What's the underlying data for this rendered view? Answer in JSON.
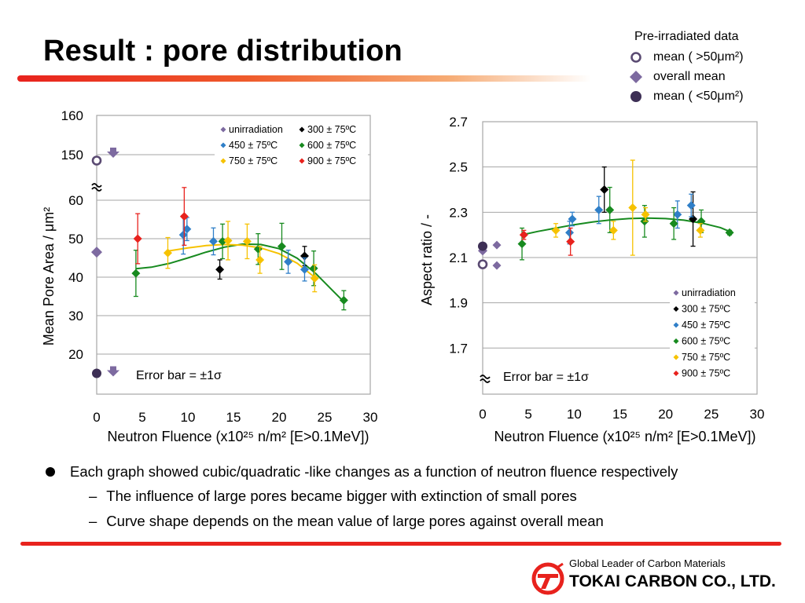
{
  "slide": {
    "title": "Result : pore distribution",
    "legend_top": {
      "heading": "Pre-irradiated data",
      "items": [
        {
          "label": "mean ( >50μm²)",
          "symbol": "open-circle",
          "color": "#5a4a72"
        },
        {
          "label": "overall mean",
          "symbol": "diamond",
          "color": "#7d6aa0"
        },
        {
          "label": "mean ( <50μm²)",
          "symbol": "filled-circle",
          "color": "#3d2f55"
        }
      ]
    },
    "bullets": [
      {
        "level": 1,
        "text": "Each graph showed cubic/quadratic -like changes as a function of neutron fluence respectively"
      },
      {
        "level": 2,
        "text": "The influence of large pores became bigger with extinction of small pores"
      },
      {
        "level": 2,
        "text": "Curve shape depends on the mean value of large pores against overall mean"
      }
    ],
    "footer": {
      "tagline": "Global Leader of Carbon Materials",
      "company": "TOKAI CARBON CO., LTD.",
      "brand_color": "#e8221d"
    }
  },
  "chart_data": [
    {
      "type": "scatter",
      "xlabel": "Neutron Fluence (x10²⁵ n/m² [E>0.1MeV])",
      "ylabel": "Mean Pore Area / μm²",
      "xlim": [
        0,
        30
      ],
      "x_ticks": [
        0,
        5,
        10,
        15,
        20,
        25,
        30
      ],
      "y_ticks_lower": [
        20,
        30,
        40,
        50,
        60
      ],
      "y_ticks_upper": [
        150,
        160
      ],
      "axis_break": true,
      "annotation": "Error bar = ±1σ",
      "grid": true,
      "legend_position": "top-right",
      "series": [
        {
          "name": "unirradiation",
          "color": "#7d6aa0",
          "points": [
            {
              "x": 0,
              "y": 46.5,
              "err": 0
            }
          ]
        },
        {
          "name": "300 ± 75ºC",
          "color": "#000000",
          "points": [
            {
              "x": 13.5,
              "y": 42,
              "err": 2.5
            },
            {
              "x": 22.8,
              "y": 45.5,
              "err": 2.5
            }
          ]
        },
        {
          "name": "450 ± 75ºC",
          "color": "#2f7fc8",
          "points": [
            {
              "x": 9.5,
              "y": 51,
              "err": 5
            },
            {
              "x": 9.9,
              "y": 52.5,
              "err": 3
            },
            {
              "x": 12.8,
              "y": 49.3,
              "err": 3.5
            },
            {
              "x": 21,
              "y": 44,
              "err": 3
            },
            {
              "x": 22.8,
              "y": 42,
              "err": 3
            }
          ]
        },
        {
          "name": "600 ± 75ºC",
          "color": "#178a1f",
          "points": [
            {
              "x": 4.3,
              "y": 41,
              "err": 6
            },
            {
              "x": 13.8,
              "y": 49.3,
              "err": 4.5
            },
            {
              "x": 17.7,
              "y": 47.3,
              "err": 4
            },
            {
              "x": 20.3,
              "y": 48,
              "err": 6
            },
            {
              "x": 23.8,
              "y": 42.3,
              "err": 4.5
            },
            {
              "x": 27.1,
              "y": 34,
              "err": 2.5
            }
          ]
        },
        {
          "name": "750 ± 75ºC",
          "color": "#f6c200",
          "points": [
            {
              "x": 7.8,
              "y": 46.3,
              "err": 4
            },
            {
              "x": 14.4,
              "y": 49.5,
              "err": 5
            },
            {
              "x": 16.5,
              "y": 49.3,
              "err": 4.5
            },
            {
              "x": 17.9,
              "y": 44.5,
              "err": 3.5
            },
            {
              "x": 23.9,
              "y": 39.7,
              "err": 3.5
            }
          ]
        },
        {
          "name": "900 ± 75ºC",
          "color": "#e8221d",
          "points": [
            {
              "x": 4.5,
              "y": 50,
              "err": 6.5
            },
            {
              "x": 9.6,
              "y": 55.8,
              "err": 7.5
            }
          ]
        }
      ],
      "pre_irradiated_points": [
        {
          "x": 0,
          "y": 148.5,
          "symbol": "open-circle"
        },
        {
          "x": 0,
          "y": 15,
          "symbol": "filled-circle"
        }
      ],
      "fits": [
        {
          "series": "600 ± 75ºC",
          "color": "#178a1f",
          "x": [
            4.3,
            6,
            8,
            10,
            12,
            14,
            16,
            18,
            20,
            22,
            24,
            26,
            27.1
          ],
          "y": [
            42.2,
            42.6,
            43.6,
            45.0,
            46.5,
            47.8,
            48.6,
            48.5,
            47.4,
            44.9,
            41.0,
            36.2,
            33.6
          ]
        },
        {
          "series": "750 ± 75ºC",
          "color": "#f6c200",
          "x": [
            7.8,
            10,
            12,
            14,
            16,
            18,
            20,
            22,
            24
          ],
          "y": [
            46.8,
            47.6,
            48.2,
            48.5,
            48.3,
            47.6,
            46.1,
            43.6,
            39.8
          ]
        }
      ]
    },
    {
      "type": "scatter",
      "xlabel": "Neutron Fluence (x10²⁵ n/m² [E>0.1MeV])",
      "ylabel": "Aspect ratio / -",
      "xlim": [
        0,
        30
      ],
      "ylim": [
        1.6,
        2.7
      ],
      "x_ticks": [
        0,
        5,
        10,
        15,
        20,
        25,
        30
      ],
      "y_ticks": [
        1.7,
        1.9,
        2.1,
        2.3,
        2.5,
        2.7
      ],
      "axis_break": true,
      "annotation": "Error bar = ±1σ",
      "grid": true,
      "legend_position": "bottom-right",
      "series": [
        {
          "name": "unirradiation",
          "color": "#7d6aa0",
          "points": [
            {
              "x": 0,
              "y": 2.13,
              "err": 0
            }
          ]
        },
        {
          "name": "300 ± 75ºC",
          "color": "#000000",
          "points": [
            {
              "x": 13.3,
              "y": 2.4,
              "err": 0.1
            },
            {
              "x": 23,
              "y": 2.27,
              "err": 0.12
            }
          ]
        },
        {
          "name": "450 ± 75ºC",
          "color": "#2f7fc8",
          "points": [
            {
              "x": 9.5,
              "y": 2.21,
              "err": 0.05
            },
            {
              "x": 9.8,
              "y": 2.27,
              "err": 0.03
            },
            {
              "x": 12.7,
              "y": 2.31,
              "err": 0.06
            },
            {
              "x": 21.3,
              "y": 2.29,
              "err": 0.06
            },
            {
              "x": 22.8,
              "y": 2.33,
              "err": 0.05
            }
          ]
        },
        {
          "name": "600 ± 75ºC",
          "color": "#178a1f",
          "points": [
            {
              "x": 4.3,
              "y": 2.16,
              "err": 0.07
            },
            {
              "x": 13.9,
              "y": 2.31,
              "err": 0.1
            },
            {
              "x": 17.7,
              "y": 2.26,
              "err": 0.07
            },
            {
              "x": 20.9,
              "y": 2.25,
              "err": 0.07
            },
            {
              "x": 23.9,
              "y": 2.26,
              "err": 0.05
            },
            {
              "x": 27,
              "y": 2.21,
              "err": 0.01
            }
          ]
        },
        {
          "name": "750 ± 75ºC",
          "color": "#f6c200",
          "points": [
            {
              "x": 8,
              "y": 2.22,
              "err": 0.03
            },
            {
              "x": 14.3,
              "y": 2.22,
              "err": 0.04
            },
            {
              "x": 16.4,
              "y": 2.32,
              "err": 0.21
            },
            {
              "x": 17.8,
              "y": 2.29,
              "err": 0.03
            },
            {
              "x": 23.8,
              "y": 2.22,
              "err": 0.03
            }
          ]
        },
        {
          "name": "900 ± 75ºC",
          "color": "#e8221d",
          "points": [
            {
              "x": 4.5,
              "y": 2.2,
              "err": 0.02
            },
            {
              "x": 9.6,
              "y": 2.17,
              "err": 0.06
            }
          ]
        }
      ],
      "pre_irradiated_points": [
        {
          "x": 0,
          "y": 2.15,
          "symbol": "filled-circle"
        },
        {
          "x": 0,
          "y": 2.07,
          "symbol": "open-circle"
        }
      ],
      "fits": [
        {
          "series": "600 ± 75ºC",
          "color": "#178a1f",
          "x": [
            4.3,
            6,
            8,
            10,
            12,
            14,
            16,
            18,
            20,
            22,
            24,
            26,
            27
          ],
          "y": [
            2.2,
            2.215,
            2.23,
            2.245,
            2.257,
            2.266,
            2.272,
            2.274,
            2.272,
            2.265,
            2.252,
            2.232,
            2.215
          ]
        }
      ]
    }
  ]
}
